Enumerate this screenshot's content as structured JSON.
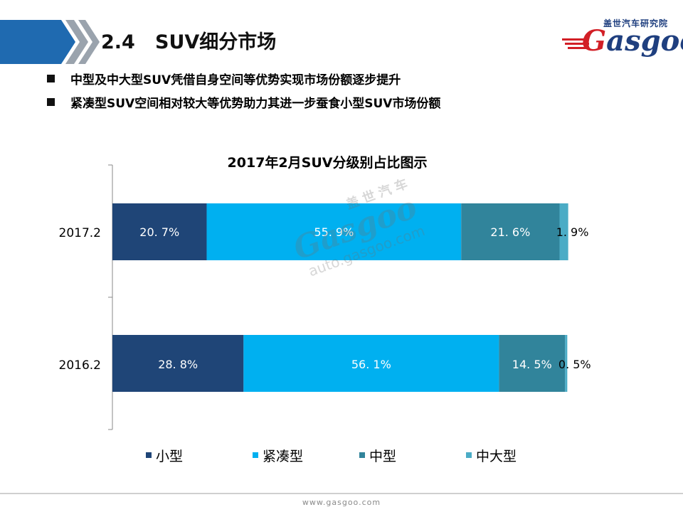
{
  "header": {
    "title": "2.4   SUV细分市场",
    "logo": {
      "cn": "盖世汽车研究院",
      "en_first": "G",
      "en_rest": "asgoo"
    }
  },
  "bullets": [
    "中型及中大型SUV凭借自身空间等优势实现市场份额逐步提升",
    "紧凑型SUV空间相对较大等优势助力其进一步蚕食小型SUV市场份额"
  ],
  "watermark": {
    "cn": "盖世汽车",
    "en": "Gasgoo",
    "url": "auto.gasgoo.com"
  },
  "footer": {
    "url": "www.gasgoo.com"
  },
  "colors": {
    "header_band": "#1f6ab0",
    "header_chevron": "#9aa3ad",
    "brand_blue": "#1f3f7f",
    "brand_red": "#d21f26"
  },
  "chart_data": {
    "type": "bar",
    "orientation": "horizontal",
    "stacked": "percent",
    "title": "2017年2月SUV分级别占比图示",
    "categories": [
      "2017.2",
      "2016.2"
    ],
    "series": [
      {
        "name": "小型",
        "values": [
          20.7,
          28.8
        ],
        "labels": [
          "20. 7%",
          "28. 8%"
        ],
        "color": "#1f4577"
      },
      {
        "name": "紧凑型",
        "values": [
          55.9,
          56.1
        ],
        "labels": [
          "55. 9%",
          "56. 1%"
        ],
        "color": "#00b0f0"
      },
      {
        "name": "中型",
        "values": [
          21.6,
          14.5
        ],
        "labels": [
          "21. 6%",
          "14. 5%"
        ],
        "color": "#31849b"
      },
      {
        "name": "中大型",
        "values": [
          1.9,
          0.5
        ],
        "labels": [
          "1. 9%",
          "0. 5%"
        ],
        "color": "#4bacc6"
      }
    ],
    "xlim": [
      0,
      100
    ],
    "grid": false,
    "legend": "bottom"
  }
}
